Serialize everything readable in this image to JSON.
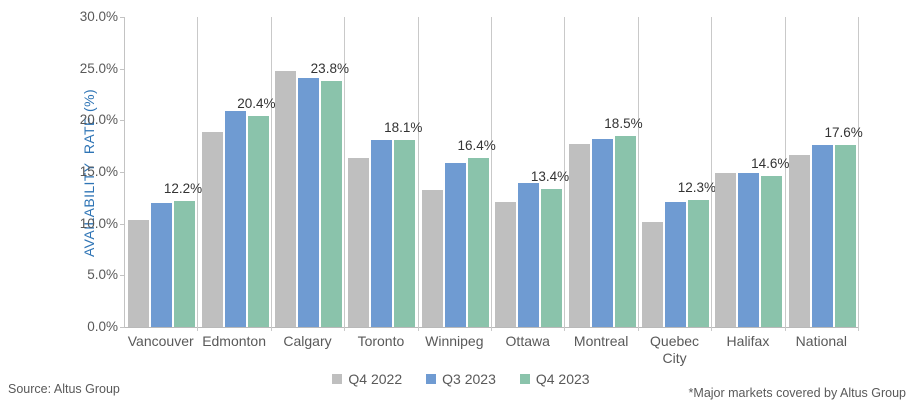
{
  "chart_data": {
    "type": "bar",
    "title": "",
    "ylabel": "AVAILABILITY  RATE (%)",
    "xlabel": "",
    "ylim": [
      0,
      30
    ],
    "ytick_step": 5,
    "ytick_labels": [
      "0.0%",
      "5.0%",
      "10.0%",
      "15.0%",
      "20.0%",
      "25.0%",
      "30.0%"
    ],
    "grid": "vertical-category-separators",
    "legend_position": "bottom",
    "categories": [
      "Vancouver",
      "Edmonton",
      "Calgary",
      "Toronto",
      "Winnipeg",
      "Ottawa",
      "Montreal",
      "Quebec City",
      "Halifax",
      "National"
    ],
    "series": [
      {
        "name": "Q4 2022",
        "color": "#bfbfbf",
        "values": [
          10.4,
          18.9,
          24.8,
          16.4,
          13.3,
          12.1,
          17.7,
          10.2,
          14.9,
          16.6
        ]
      },
      {
        "name": "Q3 2023",
        "color": "#6f9bd2",
        "values": [
          12.0,
          20.9,
          24.1,
          18.1,
          15.9,
          13.9,
          18.2,
          12.1,
          14.9,
          17.6
        ]
      },
      {
        "name": "Q4 2023",
        "color": "#8ac3ab",
        "values": [
          12.2,
          20.4,
          23.8,
          18.1,
          16.4,
          13.4,
          18.5,
          12.3,
          14.6,
          17.6
        ],
        "data_labels": [
          "12.2%",
          "20.4%",
          "23.8%",
          "18.1%",
          "16.4%",
          "13.4%",
          "18.5%",
          "12.3%",
          "14.6%",
          "17.6%"
        ]
      }
    ]
  },
  "footer": {
    "source": "Source: Altus Group",
    "note": "*Major markets covered by Altus Group"
  },
  "colors": {
    "axis_text": "#595959",
    "axis_line": "#c3c3c3",
    "ylabel_text": "#2e74b5",
    "data_label_text": "#333333"
  }
}
